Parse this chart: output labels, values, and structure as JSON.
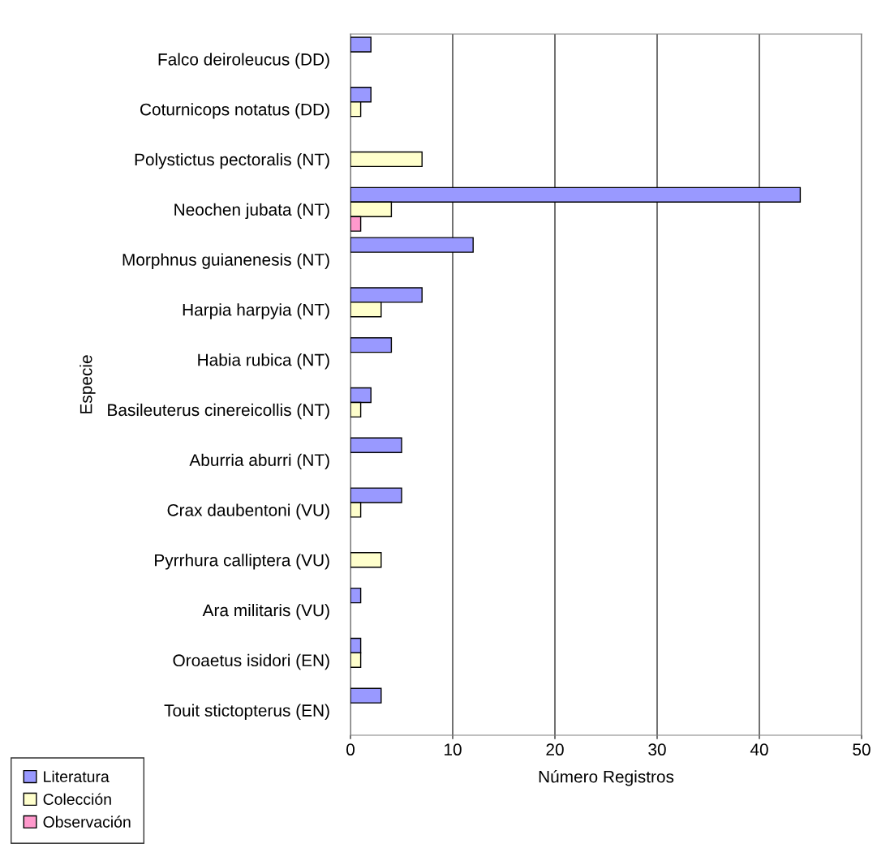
{
  "chart_data": {
    "type": "bar",
    "orientation": "horizontal",
    "xlabel": "Número Registros",
    "ylabel": "Especie",
    "categories": [
      "Falco deiroleucus (DD)",
      "Coturnicops notatus (DD)",
      "Polystictus pectoralis (NT)",
      "Neochen jubata (NT)",
      "Morphnus guianenesis (NT)",
      "Harpia harpyia (NT)",
      "Habia rubica (NT)",
      "Basileuterus cinereicollis (NT)",
      "Aburria aburri (NT)",
      "Crax daubentoni (VU)",
      "Pyrrhura calliptera (VU)",
      "Ara militaris (VU)",
      "Oroaetus isidori (EN)",
      "Touit stictopterus (EN)"
    ],
    "series": [
      {
        "name": "Literatura",
        "color": "#9999ff",
        "values": [
          2,
          2,
          null,
          44,
          12,
          7,
          4,
          2,
          5,
          5,
          null,
          1,
          1,
          3
        ]
      },
      {
        "name": "Colección",
        "color": "#ffffcc",
        "values": [
          null,
          1,
          7,
          4,
          null,
          3,
          null,
          1,
          null,
          1,
          3,
          null,
          1,
          null
        ]
      },
      {
        "name": "Observación",
        "color": "#ff99cc",
        "values": [
          null,
          null,
          null,
          1,
          null,
          null,
          null,
          null,
          null,
          null,
          null,
          null,
          null,
          null
        ]
      }
    ],
    "xlim": [
      0,
      50
    ],
    "xticks": [
      0,
      10,
      20,
      30,
      40,
      50
    ],
    "grid": "x",
    "legend": "bottom left"
  }
}
